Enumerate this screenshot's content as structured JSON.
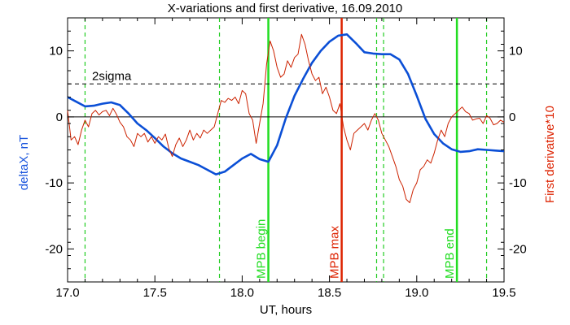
{
  "chart_data": {
    "type": "line",
    "title": "X-variations and first derivative, 16.09.2010",
    "xlabel": "UT, hours",
    "ylabel_left": "deltaX, nT",
    "ylabel_right": "First derivative*10",
    "xlim": [
      17.0,
      19.5
    ],
    "ylim": [
      -25,
      15
    ],
    "x_ticks": [
      "17.0",
      "17.5",
      "18.0",
      "18.5",
      "19.0",
      "19.5"
    ],
    "x_tick_values": [
      17.0,
      17.5,
      18.0,
      18.5,
      19.0,
      19.5
    ],
    "y_ticks": [
      "10",
      "0",
      "-10",
      "-20"
    ],
    "y_tick_values": [
      10,
      0,
      -10,
      -20
    ],
    "grid": false,
    "colors": {
      "deltaX": "#0b4fd6",
      "derivative": "#cc2200",
      "mpb_lines": "#22dd22",
      "mpb_max_line": "#dd2200",
      "dashed_green": "#22cc22",
      "left_axis_label": "#1a55dd",
      "right_axis_label": "#dd2200"
    },
    "reference_lines": [
      {
        "y": 0,
        "style": "solid"
      },
      {
        "y": 5,
        "style": "dashed",
        "label": "2sigma"
      }
    ],
    "vertical_markers": [
      {
        "x": 17.1,
        "style": "dashed",
        "color": "green"
      },
      {
        "x": 17.87,
        "style": "dashed",
        "color": "green"
      },
      {
        "x": 18.15,
        "style": "solid",
        "color": "green",
        "label": "MPB begin"
      },
      {
        "x": 18.57,
        "style": "solid",
        "color": "red",
        "label": "MPB max"
      },
      {
        "x": 18.77,
        "style": "dashed",
        "color": "green"
      },
      {
        "x": 18.81,
        "style": "dashed",
        "color": "green"
      },
      {
        "x": 19.23,
        "style": "solid",
        "color": "green",
        "label": "MPB end"
      },
      {
        "x": 19.4,
        "style": "dashed",
        "color": "green"
      }
    ],
    "series": [
      {
        "key": "deltaX",
        "x": [
          17.0,
          17.05,
          17.1,
          17.15,
          17.2,
          17.25,
          17.3,
          17.35,
          17.4,
          17.45,
          17.5,
          17.55,
          17.6,
          17.65,
          17.7,
          17.75,
          17.8,
          17.85,
          17.9,
          17.95,
          18.0,
          18.05,
          18.1,
          18.15,
          18.2,
          18.25,
          18.3,
          18.35,
          18.4,
          18.45,
          18.5,
          18.55,
          18.6,
          18.65,
          18.7,
          18.75,
          18.8,
          18.85,
          18.9,
          18.95,
          19.0,
          19.05,
          19.1,
          19.15,
          19.2,
          19.25,
          19.3,
          19.35,
          19.4,
          19.45,
          19.5
        ],
        "values": [
          3.0,
          2.3,
          1.6,
          1.7,
          2.0,
          2.2,
          1.8,
          0.5,
          -1.0,
          -2.0,
          -3.2,
          -4.5,
          -5.5,
          -6.3,
          -6.8,
          -7.3,
          -8.0,
          -8.7,
          -8.3,
          -7.3,
          -6.3,
          -5.6,
          -6.4,
          -6.8,
          -4.3,
          -0.2,
          3.2,
          5.8,
          8.2,
          10.0,
          11.4,
          12.3,
          12.5,
          11.2,
          9.8,
          9.6,
          9.5,
          9.5,
          8.7,
          6.5,
          3.2,
          -0.3,
          -2.6,
          -4.0,
          -4.9,
          -5.3,
          -5.2,
          -4.9,
          -5.0,
          -5.1,
          -5.2
        ]
      },
      {
        "key": "derivative",
        "x": [
          17.0,
          17.02,
          17.04,
          17.06,
          17.08,
          17.1,
          17.12,
          17.14,
          17.16,
          17.18,
          17.2,
          17.22,
          17.24,
          17.26,
          17.28,
          17.3,
          17.32,
          17.34,
          17.36,
          17.38,
          17.4,
          17.42,
          17.44,
          17.46,
          17.48,
          17.5,
          17.52,
          17.54,
          17.56,
          17.58,
          17.6,
          17.62,
          17.64,
          17.66,
          17.68,
          17.7,
          17.72,
          17.74,
          17.76,
          17.78,
          17.8,
          17.82,
          17.84,
          17.86,
          17.88,
          17.9,
          17.92,
          17.94,
          17.96,
          17.98,
          18.0,
          18.02,
          18.04,
          18.06,
          18.08,
          18.1,
          18.12,
          18.14,
          18.16,
          18.18,
          18.2,
          18.22,
          18.24,
          18.26,
          18.28,
          18.3,
          18.32,
          18.34,
          18.36,
          18.38,
          18.4,
          18.42,
          18.44,
          18.46,
          18.48,
          18.5,
          18.52,
          18.54,
          18.56,
          18.58,
          18.6,
          18.62,
          18.64,
          18.66,
          18.68,
          18.7,
          18.72,
          18.74,
          18.76,
          18.78,
          18.8,
          18.82,
          18.84,
          18.86,
          18.88,
          18.9,
          18.92,
          18.94,
          18.96,
          18.98,
          19.0,
          19.02,
          19.04,
          19.06,
          19.08,
          19.1,
          19.12,
          19.14,
          19.16,
          19.18,
          19.2,
          19.22,
          19.24,
          19.26,
          19.28,
          19.3,
          19.32,
          19.34,
          19.36,
          19.38,
          19.4,
          19.42,
          19.44,
          19.46,
          19.48,
          19.5
        ],
        "values": [
          1.0,
          -3.5,
          -3.0,
          -4.2,
          -2.0,
          -0.5,
          -1.5,
          0.5,
          1.0,
          0.3,
          0.8,
          1.0,
          0.2,
          1.3,
          0.4,
          -0.8,
          -1.5,
          -3.0,
          -3.5,
          -4.5,
          -2.5,
          -3.0,
          -2.5,
          -3.8,
          -3.0,
          -4.0,
          -3.0,
          -3.5,
          -2.6,
          -4.8,
          -6.0,
          -4.2,
          -3.2,
          -4.5,
          -3.5,
          -2.0,
          -3.5,
          -2.5,
          -3.2,
          -2.0,
          -2.5,
          -2.0,
          -1.5,
          0.5,
          2.5,
          2.2,
          2.8,
          2.5,
          3.0,
          2.0,
          4.0,
          3.5,
          0.5,
          -0.5,
          -4.0,
          -1.0,
          2.0,
          8.0,
          11.5,
          10.0,
          7.5,
          6.0,
          6.5,
          8.5,
          7.5,
          9.0,
          9.5,
          12.5,
          11.0,
          8.5,
          6.5,
          5.5,
          6.0,
          3.5,
          4.5,
          3.0,
          1.0,
          0.5,
          2.0,
          -1.5,
          -3.5,
          -5.0,
          -2.5,
          -2.0,
          -1.5,
          -1.0,
          -2.0,
          -0.5,
          0.5,
          -0.5,
          -2.5,
          -3.5,
          -4.5,
          -6.0,
          -7.5,
          -9.5,
          -10.5,
          -12.5,
          -13.0,
          -11.0,
          -10.0,
          -8.0,
          -7.5,
          -6.5,
          -7.0,
          -5.5,
          -3.5,
          -2.0,
          -3.0,
          -1.0,
          0.0,
          0.5,
          1.0,
          1.5,
          0.8,
          0.5,
          -0.5,
          -0.3,
          -0.2,
          -1.0,
          0.2,
          -0.2,
          -1.2,
          -1.0,
          -0.5,
          -0.8
        ]
      }
    ]
  }
}
